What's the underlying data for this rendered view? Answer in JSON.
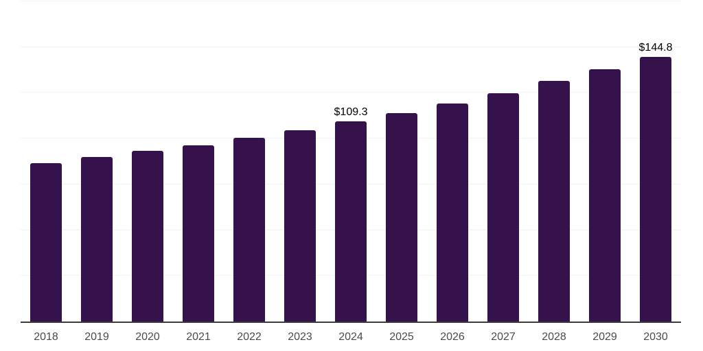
{
  "chart_data": {
    "type": "bar",
    "title": "",
    "xlabel": "",
    "ylabel": "",
    "categories": [
      "2018",
      "2019",
      "2020",
      "2021",
      "2022",
      "2023",
      "2024",
      "2025",
      "2026",
      "2027",
      "2028",
      "2029",
      "2030"
    ],
    "values": [
      86.7,
      90.1,
      93.2,
      96.2,
      100.4,
      104.6,
      109.3,
      114.1,
      119.3,
      124.8,
      131.5,
      137.9,
      144.8
    ],
    "data_labels": [
      "",
      "",
      "",
      "",
      "",
      "",
      "$109.3",
      "",
      "",
      "",
      "",
      "",
      "$144.8"
    ],
    "ylim": [
      0,
      175
    ],
    "grid_interval": 25,
    "grid": true,
    "legend": false,
    "y_tick_labels_visible": false,
    "colors": {
      "bar": "#36124c",
      "axis_line": "#3b3b3b",
      "gridline": "#f2f2f2",
      "tick_label": "#4a4a4a",
      "data_label": "#000000",
      "background": "#ffffff"
    }
  }
}
